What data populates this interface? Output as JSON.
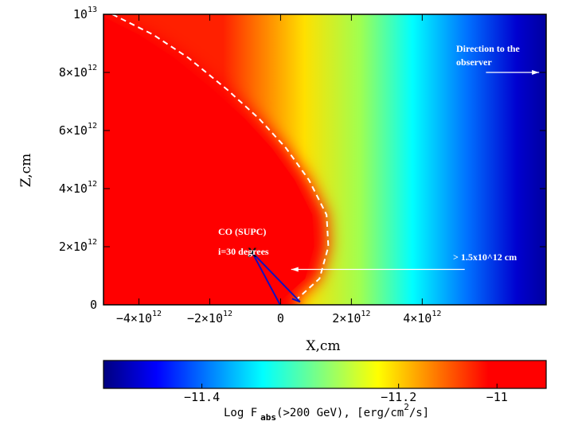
{
  "chart_data": {
    "type": "heatmap",
    "xlabel": "X,cm",
    "ylabel": "Z,cm",
    "xlim": [
      -5000000000000.0,
      7500000000000.0
    ],
    "ylim": [
      0,
      10000000000000.0
    ],
    "x_ticks": [
      {
        "value": -4000000000000.0,
        "mant": "−4×10",
        "exp": "12"
      },
      {
        "value": -2000000000000.0,
        "mant": "−2×10",
        "exp": "12"
      },
      {
        "value": 0,
        "mant": "0",
        "exp": ""
      },
      {
        "value": 2000000000000.0,
        "mant": "2×10",
        "exp": "12"
      },
      {
        "value": 4000000000000.0,
        "mant": "4×10",
        "exp": "12"
      }
    ],
    "y_ticks": [
      {
        "value": 0,
        "mant": "0",
        "exp": ""
      },
      {
        "value": 2000000000000.0,
        "mant": "2×10",
        "exp": "12"
      },
      {
        "value": 4000000000000.0,
        "mant": "4×10",
        "exp": "12"
      },
      {
        "value": 6000000000000.0,
        "mant": "6×10",
        "exp": "12"
      },
      {
        "value": 8000000000000.0,
        "mant": "8×10",
        "exp": "12"
      },
      {
        "value": 10000000000000.0,
        "mant": "10",
        "exp": "13"
      }
    ],
    "colorbar": {
      "range": [
        -11.5,
        -11.05
      ],
      "ticks": [
        {
          "value": -11.4,
          "label": "−11.4"
        },
        {
          "value": -11.2,
          "label": "−11.2"
        },
        {
          "value": -11.1,
          "label": "−11"
        }
      ],
      "label_main": "Log F",
      "label_sub": "abs",
      "label_mid": "(>200 GeV), [erg/cm",
      "label_sup": "2",
      "label_end": "/s]",
      "colormap": [
        "#00007f",
        "#0000ff",
        "#00ffff",
        "#ffff00",
        "#ff0000"
      ]
    },
    "boundary_curve": [
      [
        -4750000000000.0,
        10000000000000.0
      ],
      [
        -3600000000000.0,
        9300000000000.0
      ],
      [
        -2600000000000.0,
        8500000000000.0
      ],
      [
        -1500000000000.0,
        7400000000000.0
      ],
      [
        -600000000000.0,
        6400000000000.0
      ],
      [
        150000000000.0,
        5400000000000.0
      ],
      [
        800000000000.0,
        4300000000000.0
      ],
      [
        1300000000000.0,
        3100000000000.0
      ],
      [
        1350000000000.0,
        2000000000000.0
      ],
      [
        1100000000000.0,
        900000000000.0
      ],
      [
        450000000000.0,
        180000000000.0
      ]
    ],
    "source_position": {
      "x": -800000000000.0,
      "y": 1800000000000.0
    },
    "star_position": {
      "x": 550000000000.0,
      "y": 100000000000.0
    },
    "observer_arrow": {
      "x_from": 5800000000000.0,
      "x_to": 7300000000000.0,
      "y": 8000000000000.0
    },
    "distance_arrow": {
      "x_from": 5200000000000.0,
      "x_to": 300000000000.0,
      "y": 1220000000000.0
    },
    "annotations": {
      "observer": [
        "Direction to the",
        "observer"
      ],
      "source": [
        "CO (SUPC)",
        "i=30 degrees"
      ],
      "distance": "> 1.5x10^12 cm",
      "marker": "X"
    }
  }
}
